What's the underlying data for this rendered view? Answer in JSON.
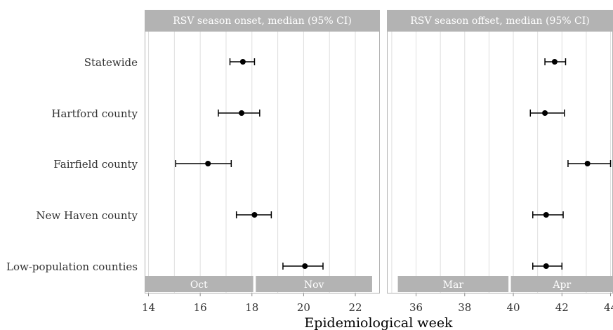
{
  "chart_data": {
    "type": "scatter",
    "subtype": "forest-plot",
    "xlabel": "Epidemiological week",
    "categories": [
      "Statewide",
      "Hartford county",
      "Fairfield county",
      "New Haven county",
      "Low-population counties"
    ],
    "colors": {
      "strip": "#b3b3b3",
      "strip_text": "#ffffff",
      "grid": "#dedede",
      "point": "#000000",
      "text": "#333333"
    },
    "panels": [
      {
        "title": "RSV season onset, median (95% CI)",
        "xlim": [
          13.85,
          22.95
        ],
        "xticks": [
          14,
          16,
          18,
          20,
          22
        ],
        "months": [
          {
            "label": "Oct",
            "start": 13.85,
            "end": 18.05
          },
          {
            "label": "Nov",
            "start": 18.15,
            "end": 22.65
          }
        ],
        "points": [
          {
            "category": "Statewide",
            "median": 17.65,
            "lower": 17.15,
            "upper": 18.1
          },
          {
            "category": "Hartford county",
            "median": 17.6,
            "lower": 16.7,
            "upper": 18.3
          },
          {
            "category": "Fairfield county",
            "median": 16.3,
            "lower": 15.05,
            "upper": 17.2
          },
          {
            "category": "New Haven county",
            "median": 18.1,
            "lower": 17.4,
            "upper": 18.75
          },
          {
            "category": "Low-population counties",
            "median": 20.05,
            "lower": 19.2,
            "upper": 20.75
          }
        ]
      },
      {
        "title": "RSV season offset, median (95% CI)",
        "xlim": [
          34.8,
          44.1
        ],
        "xticks": [
          36,
          38,
          40,
          42,
          44
        ],
        "months": [
          {
            "label": "Mar",
            "start": 35.25,
            "end": 39.8
          },
          {
            "label": "Apr",
            "start": 39.9,
            "end": 44.1
          }
        ],
        "points": [
          {
            "category": "Statewide",
            "median": 41.7,
            "lower": 41.3,
            "upper": 42.15
          },
          {
            "category": "Hartford county",
            "median": 41.3,
            "lower": 40.7,
            "upper": 42.1
          },
          {
            "category": "Fairfield county",
            "median": 43.05,
            "lower": 42.25,
            "upper": 44.0
          },
          {
            "category": "New Haven county",
            "median": 41.35,
            "lower": 40.8,
            "upper": 42.05
          },
          {
            "category": "Low-population counties",
            "median": 41.35,
            "lower": 40.8,
            "upper": 42.0
          }
        ]
      }
    ]
  }
}
